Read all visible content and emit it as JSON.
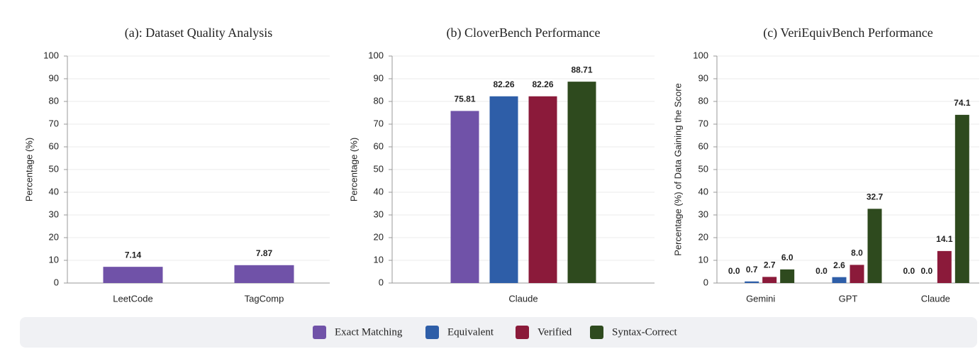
{
  "chart_data": [
    {
      "type": "bar",
      "title": "(a): Dataset Quality Analysis",
      "ylabel": "Percentage (%)",
      "categories": [
        "LeetCode",
        "TagComp"
      ],
      "values": [
        7.14,
        7.87
      ],
      "color": "#7052a8",
      "ylim": [
        0,
        100
      ],
      "yticks": [
        0,
        10,
        20,
        30,
        40,
        50,
        60,
        70,
        80,
        90,
        100
      ],
      "grid": true
    },
    {
      "type": "bar",
      "title": "(b) CloverBench Performance",
      "ylabel": "Percentage (%)",
      "categories": [
        "Claude"
      ],
      "series": [
        {
          "color": "#7052a8",
          "values": [
            75.81
          ]
        },
        {
          "color": "#2e5ea8",
          "values": [
            82.26
          ]
        },
        {
          "color": "#8b1a3a",
          "values": [
            82.26
          ]
        },
        {
          "color": "#2e4a1e",
          "values": [
            88.71
          ]
        }
      ],
      "ylim": [
        0,
        100
      ],
      "yticks": [
        0,
        10,
        20,
        30,
        40,
        50,
        60,
        70,
        80,
        90,
        100
      ],
      "grid": true
    },
    {
      "type": "bar",
      "title": "(c) VeriEquivBench Performance",
      "ylabel": "Percentage (%) of Data Gaining the Score",
      "categories": [
        "Gemini",
        "GPT",
        "Claude"
      ],
      "series": [
        {
          "name": "Exact Matching",
          "color": "#7052a8",
          "values": [
            0,
            0,
            0
          ],
          "value_labels": [
            "0.0",
            "0.0",
            "0.0"
          ]
        },
        {
          "name": "Equivalent",
          "color": "#2e5ea8",
          "values": [
            0.7,
            2.6,
            0
          ],
          "value_labels": [
            "0.7",
            "2.6",
            "0.0"
          ]
        },
        {
          "name": "Verified",
          "color": "#8b1a3a",
          "values": [
            2.7,
            8,
            14.1
          ],
          "value_labels": [
            "2.7",
            "8.0",
            "14.1"
          ]
        },
        {
          "name": "Syntax-Correct",
          "color": "#2e4a1e",
          "values": [
            6,
            32.7,
            74.1
          ],
          "value_labels": [
            "6.0",
            "32.7",
            "74.1"
          ]
        }
      ],
      "ylim": [
        0,
        100
      ],
      "yticks": [
        0,
        10,
        20,
        30,
        40,
        50,
        60,
        70,
        80,
        90,
        100
      ],
      "grid": true
    }
  ]
}
